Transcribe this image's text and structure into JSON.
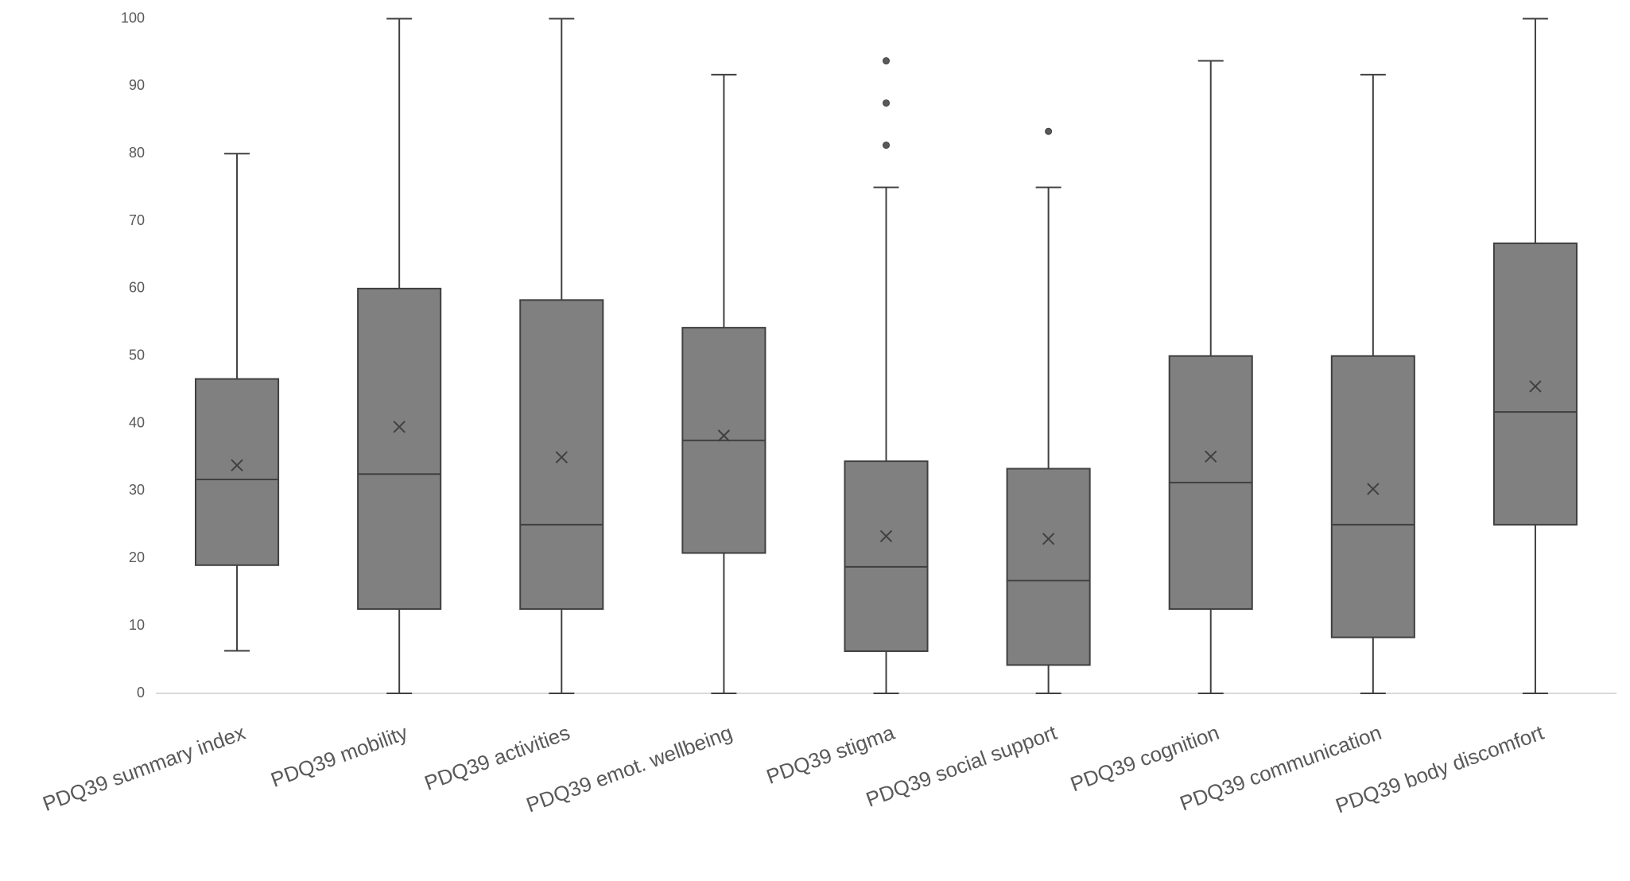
{
  "chart_data": {
    "type": "box",
    "categories": [
      "PDQ39 summary index",
      "PDQ39 mobility",
      "PDQ39 activities",
      "PDQ39 emot. wellbeing",
      "PDQ39 stigma",
      "PDQ39 social support",
      "PDQ39 cognition",
      "PDQ39 communication",
      "PDQ39 body discomfort"
    ],
    "boxes": [
      {
        "whislo": 6.3,
        "q1": 19,
        "med": 31.7,
        "q3": 46.6,
        "whishi": 80,
        "mean": 33.8,
        "fliers": []
      },
      {
        "whislo": 0,
        "q1": 12.5,
        "med": 32.5,
        "q3": 60,
        "whishi": 100,
        "mean": 39.5,
        "fliers": []
      },
      {
        "whislo": 0,
        "q1": 12.5,
        "med": 25,
        "q3": 58.3,
        "whishi": 100,
        "mean": 35,
        "fliers": []
      },
      {
        "whislo": 0,
        "q1": 20.8,
        "med": 37.5,
        "q3": 54.2,
        "whishi": 91.7,
        "mean": 38.2,
        "fliers": []
      },
      {
        "whislo": 0,
        "q1": 6.25,
        "med": 18.75,
        "q3": 34.4,
        "whishi": 75,
        "mean": 23.3,
        "fliers": [
          81.25,
          87.5,
          93.75
        ]
      },
      {
        "whislo": 0,
        "q1": 4.2,
        "med": 16.7,
        "q3": 33.3,
        "whishi": 75,
        "mean": 22.9,
        "fliers": [
          83.3
        ]
      },
      {
        "whislo": 0,
        "q1": 12.5,
        "med": 31.25,
        "q3": 50,
        "whishi": 93.75,
        "mean": 35.1,
        "fliers": []
      },
      {
        "whislo": 0,
        "q1": 8.3,
        "med": 25,
        "q3": 50,
        "whishi": 91.7,
        "mean": 30.3,
        "fliers": []
      },
      {
        "whislo": 0,
        "q1": 25,
        "med": 41.7,
        "q3": 66.7,
        "whishi": 100,
        "mean": 45.5,
        "fliers": []
      }
    ],
    "color": "#808080",
    "ylim": [
      0,
      100
    ],
    "yticks": [
      0,
      10,
      20,
      30,
      40,
      50,
      60,
      70,
      80,
      90,
      100
    ],
    "grid": false
  }
}
